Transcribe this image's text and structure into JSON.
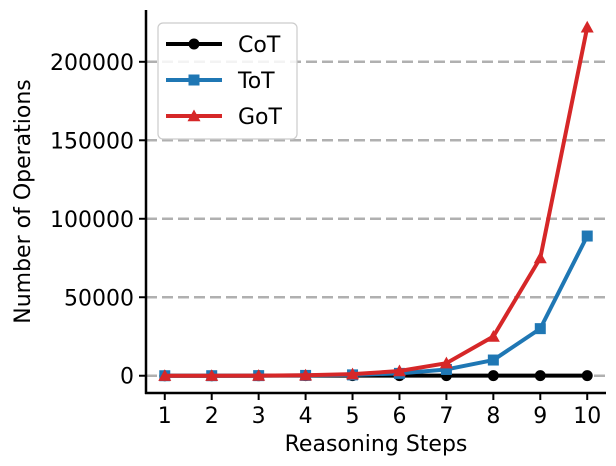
{
  "chart_data": {
    "type": "line",
    "title": "",
    "xlabel": "Reasoning Steps",
    "ylabel": "Number of Operations",
    "x": [
      1,
      2,
      3,
      4,
      5,
      6,
      7,
      8,
      9,
      10
    ],
    "x_tick_labels": [
      "1",
      "2",
      "3",
      "4",
      "5",
      "6",
      "7",
      "8",
      "9",
      "10"
    ],
    "ylim": [
      -11000,
      233000
    ],
    "xlim": [
      0.6,
      10.4
    ],
    "y_ticks": [
      0,
      50000,
      100000,
      150000,
      200000
    ],
    "y_tick_labels": [
      "0",
      "50000",
      "100000",
      "150000",
      "200000"
    ],
    "grid": "horizontal dashed",
    "legend_position": "top-left",
    "series": [
      {
        "name": "CoT",
        "color": "#000000",
        "marker": "circle",
        "values": [
          10,
          20,
          30,
          40,
          50,
          60,
          70,
          80,
          90,
          100
        ]
      },
      {
        "name": "ToT",
        "color": "#1f77b4",
        "marker": "square",
        "values": [
          5,
          20,
          70,
          200,
          550,
          1500,
          4000,
          10000,
          30000,
          89000
        ]
      },
      {
        "name": "GoT",
        "color": "#d62728",
        "marker": "triangle",
        "values": [
          5,
          25,
          100,
          300,
          1000,
          3000,
          8000,
          25000,
          75000,
          222000
        ]
      }
    ]
  }
}
